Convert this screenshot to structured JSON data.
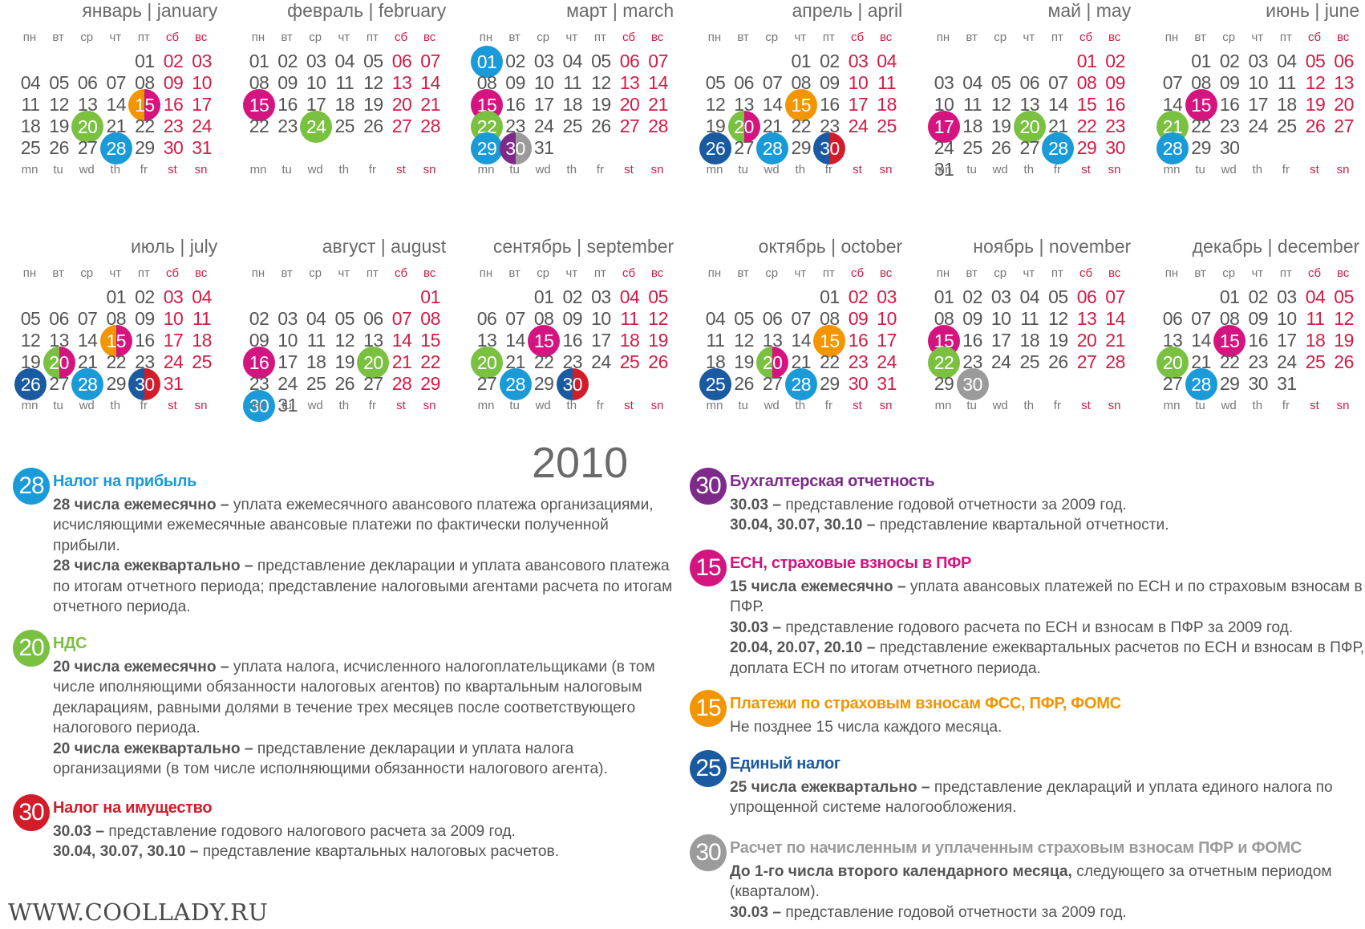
{
  "year": "2010",
  "colors": {
    "weekend": "#d21c45",
    "blue": "#1a9ad6",
    "green": "#7ac142",
    "magenta": "#d4147f",
    "red": "#d21c2a",
    "purple": "#7d2a8a",
    "orange": "#f29500",
    "darkblue": "#1a5aa0",
    "gray": "#9b9b9b"
  },
  "weekday_ru": [
    "пн",
    "вт",
    "ср",
    "чт",
    "пт",
    "сб",
    "вс"
  ],
  "weekday_en": [
    "mn",
    "tu",
    "wd",
    "th",
    "fr",
    "st",
    "sn"
  ],
  "months": [
    {
      "name": "январь | january",
      "start": 4,
      "days": 31,
      "highlights": {
        "15": "orange-magenta",
        "20": "green",
        "28": "blue"
      }
    },
    {
      "name": "февраль | february",
      "start": 0,
      "days": 28,
      "highlights": {
        "15": "magenta",
        "24": "green"
      }
    },
    {
      "name": "март | march",
      "start": 0,
      "days": 31,
      "highlights": {
        "1": "blue",
        "15": "magenta",
        "22": "green",
        "29": "blue",
        "30": "purple-gray"
      }
    },
    {
      "name": "апрель | april",
      "start": 3,
      "days": 30,
      "highlights": {
        "15": "orange",
        "20": "green-magenta",
        "26": "darkblue",
        "28": "blue",
        "30": "darkblue-red"
      }
    },
    {
      "name": "май | may",
      "start": 5,
      "days": 31,
      "highlights": {
        "17": "magenta",
        "20": "green",
        "28": "blue"
      }
    },
    {
      "name": "июнь | june",
      "start": 1,
      "days": 30,
      "highlights": {
        "15": "magenta",
        "21": "green",
        "28": "blue"
      }
    },
    {
      "name": "июль | july",
      "start": 3,
      "days": 31,
      "highlights": {
        "15": "orange-magenta",
        "20": "green-magenta",
        "26": "darkblue",
        "28": "blue",
        "30": "darkblue-red"
      }
    },
    {
      "name": "август | august",
      "start": 6,
      "days": 31,
      "highlights": {
        "16": "magenta",
        "20": "green",
        "30": "blue"
      }
    },
    {
      "name": "сентябрь | september",
      "start": 2,
      "days": 30,
      "highlights": {
        "15": "magenta",
        "20": "green",
        "28": "blue",
        "30": "darkblue-red"
      }
    },
    {
      "name": "октябрь | october",
      "start": 4,
      "days": 31,
      "highlights": {
        "15": "orange",
        "20": "green-magenta",
        "25": "darkblue",
        "28": "blue"
      }
    },
    {
      "name": "ноябрь | november",
      "start": 0,
      "days": 30,
      "highlights": {
        "15": "magenta",
        "22": "green",
        "30": "gray"
      }
    },
    {
      "name": "декабрь | december",
      "start": 2,
      "days": 31,
      "highlights": {
        "15": "magenta",
        "20": "green",
        "28": "blue"
      }
    }
  ],
  "legend_left": [
    {
      "num": "28",
      "color": "blue",
      "title": "Налог на прибыль",
      "lines": [
        {
          "b": "28 числа ежемесячно –",
          "t": " уплата ежемесячного авансового платежа организациями, исчисляющими ежемесячные авансовые платежи по фактически полученной прибыли."
        },
        {
          "b": "28 числа ежеквартально –",
          "t": " представление декларации и уплата авансового платежа по итогам отчетного периода; представление налоговыми агентами расчета по итогам отчетного периода."
        }
      ]
    },
    {
      "num": "20",
      "color": "green",
      "title": "НДС",
      "lines": [
        {
          "b": "20 числа ежемесячно –",
          "t": " уплата налога, исчисленного налогоплательщиками (в том числе иполняющими обязанности налоговых агентов) по квартальным налоговым декларациям, равными долями в течение трех месяцев после соответствующего налогового периода."
        },
        {
          "b": "20 числа ежеквартально –",
          "t": " представление декларации и уплата налога организациями (в том числе исполняющими обязанности налогового агента)."
        }
      ]
    },
    {
      "num": "30",
      "color": "red",
      "title": "Налог на имущество",
      "lines": [
        {
          "b": "30.03 –",
          "t": " представление годового налогового расчета за 2009 год."
        },
        {
          "b": "30.04, 30.07, 30.10 –",
          "t": " представление квартальных налоговых расчетов."
        }
      ]
    }
  ],
  "legend_right": [
    {
      "num": "30",
      "color": "purple",
      "title": "Бухгалтерская отчетность",
      "lines": [
        {
          "b": "30.03 –",
          "t": " представление годовой отчетности за 2009 год."
        },
        {
          "b": "30.04, 30.07, 30.10 –",
          "t": " представление квартальной отчетности."
        }
      ]
    },
    {
      "num": "15",
      "color": "magenta",
      "title": "ЕСН, страховые взносы в ПФР",
      "lines": [
        {
          "b": "15 числа ежемесячно –",
          "t": " уплата авансовых платежей по ЕСН и по страховым взносам в ПФР."
        },
        {
          "b": "30.03 –",
          "t": " представление годового расчета по ЕСН и взносам в ПФР за 2009 год."
        },
        {
          "b": "20.04, 20.07, 20.10 –",
          "t": " представление ежеквартальных расчетов по ЕСН и взносам в ПФР, доплата ЕСН по итогам отчетного периода."
        }
      ]
    },
    {
      "num": "15",
      "color": "orange",
      "title": "Платежи по страховым взносам ФСС, ПФР, ФОМС",
      "lines": [
        {
          "b": "",
          "t": "Не позднее 15 числа каждого месяца."
        }
      ]
    },
    {
      "num": "25",
      "color": "darkblue",
      "title": "Единый налог",
      "lines": [
        {
          "b": "25 числа ежеквартально –",
          "t": " представление деклараций и уплата единого налога по упрощенной системе налогообложения."
        }
      ]
    },
    {
      "num": "30",
      "color": "gray",
      "title": "Расчет по начисленным и уплаченным страховым взносам ПФР и ФОМС",
      "lines": [
        {
          "b": "До 1-го числа второго календарного месяца,",
          "t": " следующего за отчетным периодом (кварталом)."
        },
        {
          "b": "30.03 –",
          "t": " представление годовой отчетности за 2009 год."
        }
      ]
    }
  ],
  "watermark": "WWW.COOLLADY.RU"
}
